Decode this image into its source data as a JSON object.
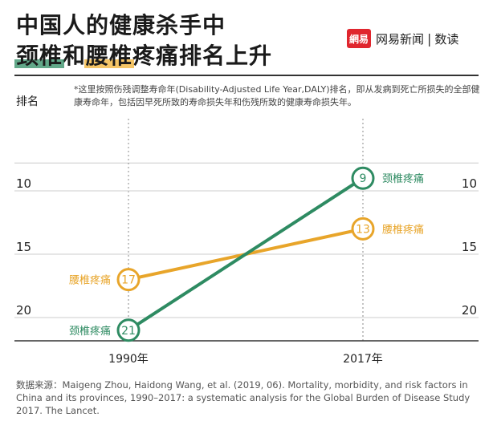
{
  "header": {
    "title_line1": "中国人的健康杀手中",
    "title_line2_part1": "颈椎",
    "title_line2_part2": "和",
    "title_line2_part3": "腰椎",
    "title_line2_part4": "疼痛排名上升",
    "brand_logo": "網易",
    "brand_name": "网易新闻",
    "brand_sub": "数读"
  },
  "axis_title": "排名",
  "note": "*这里按照伤残调整寿命年(Disability-Adjusted Life Year,DALY)排名，即从发病到死亡所损失的全部健康寿命年，包括因早死所致的寿命损失年和伤残所致的健康寿命损失年。",
  "source": "数据来源：Maigeng Zhou, Haidong Wang, et al. (2019, 06). Mortality, morbidity, and risk factors in China and its provinces, 1990–2017: a systematic analysis for the Global Burden of Disease Study 2017. The Lancet.",
  "colors": {
    "neck": "#2e8b62",
    "lumbar": "#e8a52a",
    "grid": "#bbbbbb"
  },
  "chart_data": {
    "type": "line",
    "title": "中国人的健康杀手中颈椎和腰椎疼痛排名上升",
    "xlabel": "",
    "ylabel": "排名",
    "categories": [
      "1990年",
      "2017年"
    ],
    "y_ticks": [
      10,
      15,
      20
    ],
    "ylim": [
      6.5,
      21.5
    ],
    "y_inverted": true,
    "series": [
      {
        "name": "颈椎疼痛",
        "color": "#2e8b62",
        "values": [
          21,
          9
        ],
        "label_left": "颈椎疼痛",
        "label_right": "颈椎疼痛"
      },
      {
        "name": "腰椎疼痛",
        "color": "#e8a52a",
        "values": [
          17,
          13
        ],
        "label_left": "腰椎疼痛",
        "label_right": "腰椎疼痛"
      }
    ]
  }
}
